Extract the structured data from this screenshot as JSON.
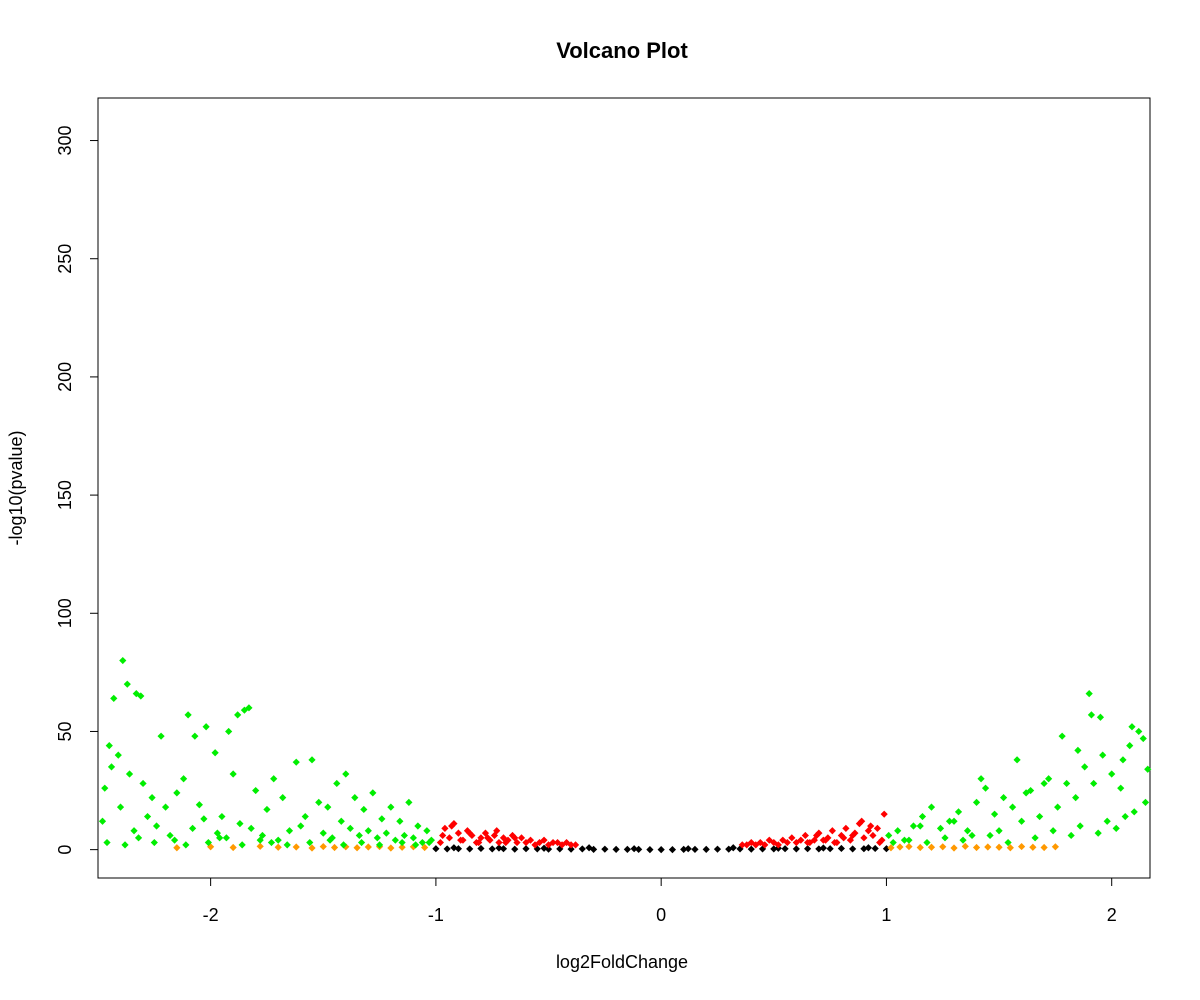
{
  "chart_data": {
    "type": "scatter",
    "title": "Volcano Plot",
    "xlabel": "log2FoldChange",
    "ylabel": "-log10(pvalue)",
    "xlim": [
      -2.5,
      2.17
    ],
    "ylim": [
      -12,
      318
    ],
    "xticks": [
      -2,
      -1,
      0,
      1,
      2
    ],
    "yticks": [
      0,
      50,
      100,
      150,
      200,
      250,
      300
    ],
    "grid": false,
    "legend": "none",
    "point_shape": "diamond",
    "series": [
      {
        "color": "#000000",
        "x": [
          -1.0,
          -0.95,
          -0.9,
          -0.85,
          -0.8,
          -0.75,
          -0.7,
          -0.65,
          -0.6,
          -0.55,
          -0.5,
          -0.45,
          -0.4,
          -0.35,
          -0.3,
          -0.25,
          -0.2,
          -0.15,
          -0.1,
          -0.05,
          0.0,
          0.05,
          0.1,
          0.15,
          0.2,
          0.25,
          0.3,
          0.35,
          0.4,
          0.45,
          0.5,
          0.55,
          0.6,
          0.65,
          0.7,
          0.75,
          0.8,
          0.85,
          0.9,
          0.95,
          1.0,
          -0.12,
          0.12,
          -0.32,
          0.32,
          -0.52,
          0.52,
          -0.72,
          0.72,
          -0.92,
          0.92
        ],
        "y": [
          0.4,
          0.3,
          0.4,
          0.3,
          0.5,
          0.3,
          0.4,
          0.2,
          0.4,
          0.3,
          0.2,
          0.3,
          0.2,
          0.3,
          0.1,
          0.2,
          0.1,
          0.1,
          0.1,
          0.0,
          0.0,
          0.0,
          0.1,
          0.1,
          0.1,
          0.2,
          0.2,
          0.3,
          0.2,
          0.3,
          0.3,
          0.4,
          0.3,
          0.4,
          0.3,
          0.4,
          0.5,
          0.3,
          0.4,
          0.5,
          0.4,
          0.4,
          0.4,
          0.8,
          0.8,
          0.6,
          0.6,
          0.7,
          0.7,
          0.8,
          0.8
        ]
      },
      {
        "color": "#ff0000",
        "x": [
          -0.98,
          -0.96,
          -0.94,
          -0.92,
          -0.9,
          -0.88,
          -0.86,
          -0.84,
          -0.82,
          -0.8,
          -0.78,
          -0.76,
          -0.74,
          -0.72,
          -0.7,
          -0.68,
          -0.66,
          -0.64,
          -0.62,
          -0.6,
          -0.58,
          -0.56,
          -0.54,
          -0.52,
          -0.5,
          -0.48,
          -0.46,
          -0.44,
          -0.42,
          -0.4,
          -0.38,
          -0.97,
          -0.93,
          -0.89,
          -0.85,
          -0.81,
          -0.77,
          -0.73,
          -0.69,
          -0.65,
          0.36,
          0.38,
          0.4,
          0.42,
          0.44,
          0.46,
          0.48,
          0.5,
          0.52,
          0.54,
          0.56,
          0.58,
          0.6,
          0.62,
          0.64,
          0.66,
          0.68,
          0.7,
          0.72,
          0.74,
          0.76,
          0.78,
          0.8,
          0.82,
          0.84,
          0.86,
          0.88,
          0.9,
          0.92,
          0.94,
          0.96,
          0.98,
          0.99,
          0.97,
          0.93,
          0.89,
          0.85,
          0.81,
          0.77,
          0.73,
          0.69,
          0.65
        ],
        "y": [
          3,
          9,
          5,
          11,
          7,
          4,
          8,
          6,
          3,
          5,
          7,
          4,
          6,
          3,
          5,
          4,
          6,
          3,
          5,
          3,
          4,
          2,
          3,
          4,
          2,
          3,
          3,
          2,
          3,
          2,
          2,
          6,
          10,
          4,
          7,
          3,
          5,
          8,
          3,
          5,
          2,
          2,
          3,
          2,
          3,
          2,
          4,
          3,
          2,
          4,
          3,
          5,
          3,
          4,
          6,
          3,
          4,
          7,
          4,
          5,
          8,
          3,
          6,
          9,
          4,
          7,
          11,
          5,
          8,
          6,
          9,
          4,
          15,
          3,
          10,
          12,
          6,
          5,
          3,
          4,
          6,
          3
        ]
      },
      {
        "color": "#ff9900",
        "x": [
          -2.15,
          -2.0,
          -1.9,
          -1.78,
          -1.7,
          -1.62,
          -1.55,
          -1.5,
          -1.45,
          -1.4,
          -1.35,
          -1.3,
          -1.25,
          -1.2,
          -1.15,
          -1.1,
          -1.05,
          1.02,
          1.06,
          1.1,
          1.15,
          1.2,
          1.25,
          1.3,
          1.35,
          1.4,
          1.45,
          1.5,
          1.55,
          1.6,
          1.65,
          1.7,
          1.75
        ],
        "y": [
          0.8,
          1.2,
          0.9,
          1.4,
          1.0,
          1.1,
          0.7,
          1.3,
          0.9,
          1.2,
          0.8,
          1.1,
          1.3,
          0.7,
          1.0,
          1.2,
          0.9,
          0.8,
          1.1,
          1.3,
          0.9,
          1.0,
          1.2,
          0.7,
          1.4,
          0.9,
          1.1,
          1.0,
          0.8,
          1.3,
          1.0,
          0.9,
          1.2
        ]
      },
      {
        "color": "#00ee00",
        "x": [
          -2.39,
          -2.33,
          -2.37,
          -2.43,
          -2.31,
          -2.45,
          -2.22,
          -2.1,
          -2.07,
          -2.02,
          -1.98,
          -1.85,
          -1.83,
          -1.88,
          -1.92,
          -2.47,
          -2.44,
          -2.41,
          -2.36,
          -2.3,
          -2.26,
          -2.2,
          -2.15,
          -2.12,
          -2.05,
          -1.95,
          -1.9,
          -1.8,
          -1.75,
          -1.72,
          -1.68,
          -1.62,
          -1.58,
          -1.55,
          -1.52,
          -1.48,
          -1.44,
          -1.4,
          -1.36,
          -1.32,
          -1.28,
          -1.24,
          -1.2,
          -1.16,
          -1.12,
          -1.08,
          -1.04,
          -2.48,
          -2.4,
          -2.34,
          -2.28,
          -2.24,
          -2.18,
          -2.08,
          -2.03,
          -1.97,
          -1.93,
          -1.87,
          -1.82,
          -1.77,
          -1.7,
          -1.65,
          -1.6,
          -1.5,
          -1.46,
          -1.42,
          -1.38,
          -1.34,
          -1.3,
          -1.26,
          -1.22,
          -1.18,
          -1.14,
          -1.1,
          -1.06,
          -1.02,
          -2.46,
          -2.38,
          -2.32,
          -2.25,
          -2.16,
          -2.11,
          -2.01,
          -1.96,
          -1.86,
          -1.78,
          -1.73,
          -1.66,
          -1.56,
          -1.47,
          -1.41,
          -1.33,
          -1.25,
          -1.15,
          -1.09,
          -1.03,
          1.01,
          1.05,
          1.08,
          1.12,
          1.16,
          1.2,
          1.24,
          1.28,
          1.32,
          1.36,
          1.4,
          1.44,
          1.48,
          1.52,
          1.56,
          1.6,
          1.64,
          1.68,
          1.72,
          1.76,
          1.8,
          1.84,
          1.88,
          1.92,
          1.96,
          2.0,
          2.04,
          2.08,
          2.12,
          2.16,
          1.9,
          1.91,
          1.85,
          1.78,
          1.95,
          2.09,
          2.14,
          2.05,
          1.58,
          1.42,
          1.62,
          1.7,
          1.03,
          1.1,
          1.18,
          1.26,
          1.34,
          1.46,
          1.54,
          1.66,
          1.74,
          1.82,
          1.86,
          1.94,
          1.98,
          2.02,
          2.06,
          2.1,
          2.15,
          1.15,
          1.3,
          1.5,
          1.38
        ],
        "y": [
          80,
          66,
          70,
          64,
          65,
          44,
          48,
          57,
          48,
          52,
          41,
          59,
          60,
          57,
          50,
          26,
          35,
          40,
          32,
          28,
          22,
          18,
          24,
          30,
          19,
          14,
          32,
          25,
          17,
          30,
          22,
          37,
          14,
          38,
          20,
          18,
          28,
          32,
          22,
          17,
          24,
          13,
          18,
          12,
          20,
          10,
          8,
          12,
          18,
          8,
          14,
          10,
          6,
          9,
          13,
          7,
          5,
          11,
          9,
          6,
          4,
          8,
          10,
          7,
          5,
          12,
          9,
          6,
          8,
          5,
          7,
          4,
          6,
          5,
          3,
          4,
          3,
          2,
          5,
          3,
          4,
          2,
          3,
          5,
          2,
          4,
          3,
          2,
          3,
          4,
          2,
          3,
          2,
          3,
          2,
          3,
          6,
          8,
          4,
          10,
          14,
          18,
          9,
          12,
          16,
          8,
          20,
          26,
          15,
          22,
          18,
          12,
          25,
          14,
          30,
          18,
          28,
          22,
          35,
          28,
          40,
          32,
          26,
          44,
          50,
          34,
          66,
          57,
          42,
          48,
          56,
          52,
          47,
          38,
          38,
          30,
          24,
          28,
          3,
          4,
          3,
          5,
          4,
          6,
          3,
          5,
          8,
          6,
          10,
          7,
          12,
          9,
          14,
          16,
          20,
          10,
          12,
          8,
          6
        ]
      }
    ]
  }
}
